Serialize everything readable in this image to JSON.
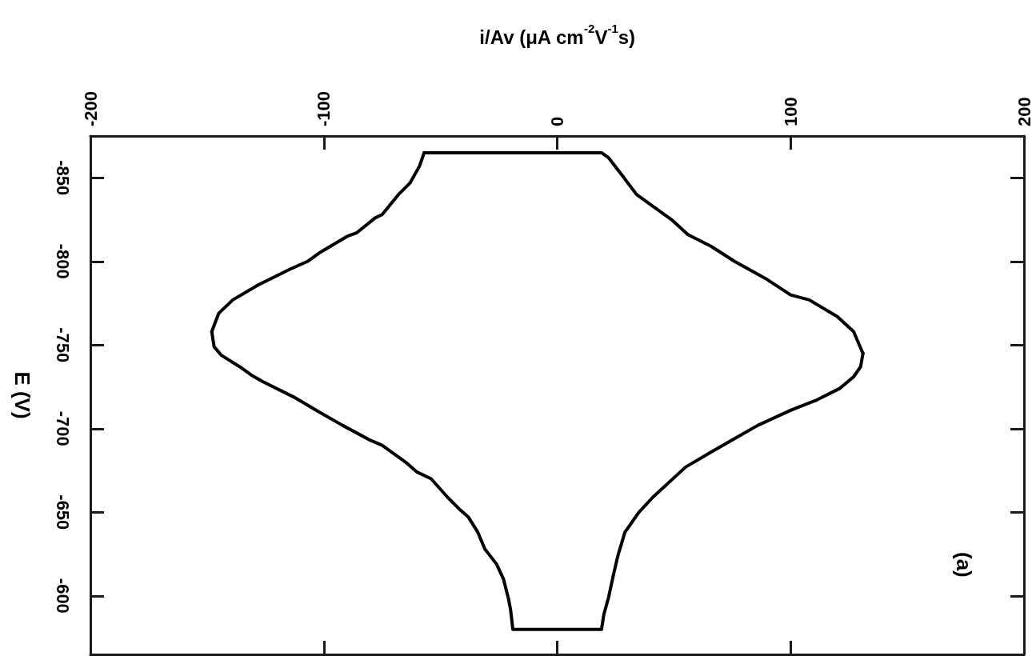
{
  "chart_data": {
    "type": "line",
    "xlabel": "i/Av (μA cm$^{-2}$V$^{-1}$s)",
    "ylabel": "E (V)",
    "xlim": [
      -200,
      200
    ],
    "xticks": [
      -200,
      -100,
      0,
      100,
      200
    ],
    "ylim": [
      -565,
      -875
    ],
    "yticks": [
      -850,
      -800,
      -750,
      -700,
      -650,
      -600
    ],
    "marker": "none",
    "series": [
      {
        "color": "#000000",
        "x": [
          -57,
          19,
          22,
          27,
          34,
          41,
          49,
          56,
          66,
          76,
          89,
          100,
          108,
          120,
          127,
          131
        ],
        "values": [
          -865,
          -865,
          -862,
          -853,
          -840,
          -833,
          -825,
          -816,
          -809,
          -800,
          -790,
          -780,
          -777,
          -767,
          -758,
          -745
        ]
      },
      {
        "color": "#000000",
        "x": [
          131,
          130,
          127,
          121,
          111,
          100,
          86,
          76,
          66,
          55,
          41,
          35,
          29,
          26,
          24,
          22,
          20,
          19,
          -19,
          -20,
          -21,
          -23,
          -26,
          -31,
          -34,
          -38,
          -42,
          -47,
          -54,
          -60,
          -65,
          -75,
          -80,
          -92,
          -102,
          -113,
          -126,
          -131,
          -136,
          -144,
          -147,
          -148
        ],
        "values": [
          -745,
          -737,
          -731,
          -724,
          -717,
          -711,
          -702,
          -694,
          -686,
          -677,
          -659,
          -650,
          -638,
          -624,
          -612,
          -599,
          -589,
          -580,
          -580,
          -592,
          -599,
          -610,
          -619,
          -628,
          -638,
          -647,
          -652,
          -659,
          -670,
          -674,
          -680,
          -690,
          -693,
          -702,
          -710,
          -719,
          -728,
          -732,
          -737,
          -744,
          -749,
          -758
        ]
      },
      {
        "color": "#000000",
        "x": [
          -148,
          -145,
          -139,
          -128,
          -115,
          -107,
          -102,
          -90,
          -86,
          -78,
          -75,
          -68,
          -63,
          -59,
          -58,
          -57
        ],
        "values": [
          -758,
          -769,
          -777,
          -786,
          -795,
          -800,
          -805,
          -815,
          -817,
          -826,
          -828,
          -840,
          -847,
          -857,
          -861,
          -865
        ]
      }
    ],
    "annotations": [
      "(a)"
    ]
  }
}
